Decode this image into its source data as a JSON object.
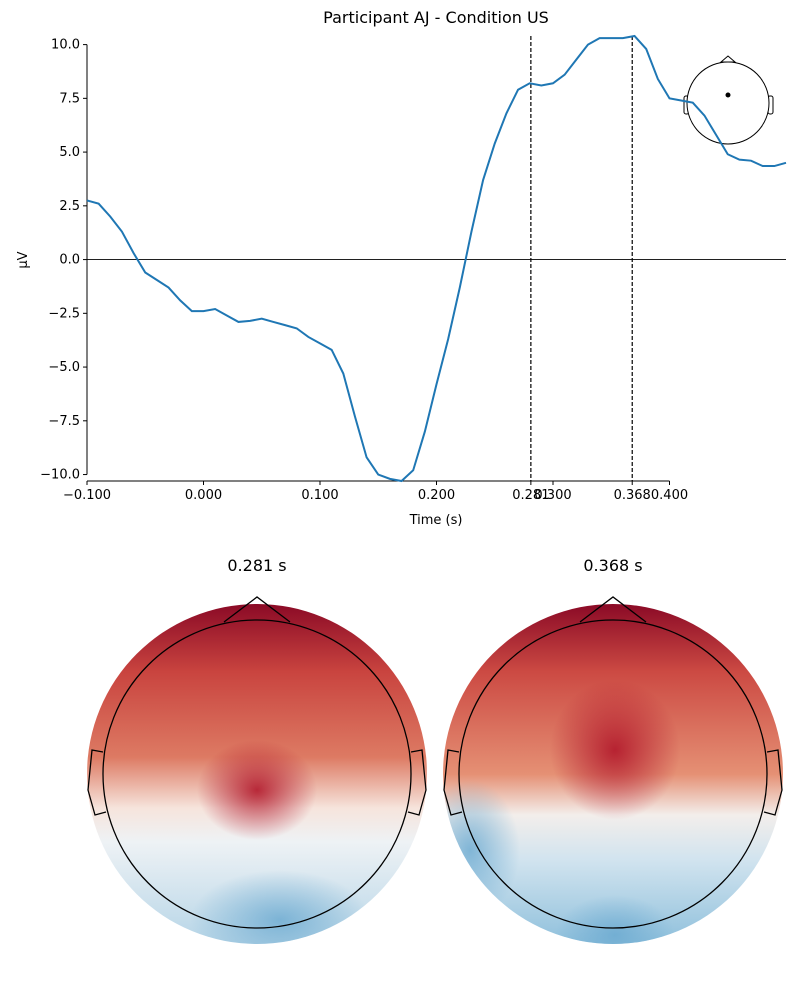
{
  "chart_data": {
    "type": "line",
    "title": "Participant AJ - Condition US",
    "x_label": "Time (s)",
    "y_label": "µV",
    "x": [
      -0.1,
      -0.09,
      -0.08,
      -0.07,
      -0.06,
      -0.05,
      -0.04,
      -0.03,
      -0.02,
      -0.01,
      0.0,
      0.01,
      0.02,
      0.03,
      0.04,
      0.05,
      0.06,
      0.07,
      0.08,
      0.09,
      0.1,
      0.11,
      0.12,
      0.13,
      0.14,
      0.15,
      0.16,
      0.17,
      0.18,
      0.19,
      0.2,
      0.21,
      0.22,
      0.23,
      0.24,
      0.25,
      0.26,
      0.27,
      0.28,
      0.29,
      0.3,
      0.31,
      0.32,
      0.33,
      0.34,
      0.35,
      0.36,
      0.37,
      0.38,
      0.39,
      0.4,
      0.41,
      0.42,
      0.43,
      0.44,
      0.45,
      0.46,
      0.47,
      0.48,
      0.49,
      0.5
    ],
    "series": [
      {
        "color": "#1f77b4",
        "values": [
          2.75,
          2.6,
          2.0,
          1.3,
          0.3,
          -0.6,
          -0.95,
          -1.3,
          -1.9,
          -2.4,
          -2.4,
          -2.3,
          -2.6,
          -2.9,
          -2.85,
          -2.75,
          -2.9,
          -3.05,
          -3.2,
          -3.6,
          -3.9,
          -4.2,
          -5.3,
          -7.3,
          -9.2,
          -10.0,
          -10.2,
          -10.3,
          -9.8,
          -8.0,
          -5.8,
          -3.7,
          -1.3,
          1.3,
          3.7,
          5.4,
          6.8,
          7.9,
          8.2,
          8.1,
          8.2,
          8.6,
          9.3,
          10.0,
          10.3,
          10.3,
          10.3,
          10.4,
          9.8,
          8.4,
          7.5,
          7.4,
          7.3,
          6.7,
          5.8,
          4.9,
          4.65,
          4.6,
          4.35,
          4.35,
          4.5
        ]
      }
    ],
    "time_markers": [
      0.281,
      0.368
    ],
    "xlim": [
      -0.1,
      0.5
    ],
    "ylim": [
      -10.3,
      10.4
    ],
    "xticks": [
      {
        "value": -0.1,
        "label": "−0.100"
      },
      {
        "value": 0.0,
        "label": "0.000"
      },
      {
        "value": 0.1,
        "label": "0.100"
      },
      {
        "value": 0.2,
        "label": "0.200"
      },
      0.281,
      {
        "value": 0.3,
        "label": "0.300"
      },
      0.368,
      {
        "value": 0.4,
        "label": "0.400"
      }
    ],
    "yticks": [
      {
        "value": -10,
        "label": "−10.0"
      },
      {
        "value": -7.5,
        "label": "−7.5"
      },
      {
        "value": -5,
        "label": "−5.0"
      },
      {
        "value": -2.5,
        "label": "−2.5"
      },
      {
        "value": 0,
        "label": "0.0"
      },
      {
        "value": 2.5,
        "label": "2.5"
      },
      {
        "value": 5,
        "label": "5.0"
      },
      {
        "value": 7.5,
        "label": "7.5"
      },
      {
        "value": 10,
        "label": "10.0"
      }
    ],
    "topomaps": [
      {
        "title": "0.281 s"
      },
      {
        "title": "0.368 s"
      }
    ]
  }
}
